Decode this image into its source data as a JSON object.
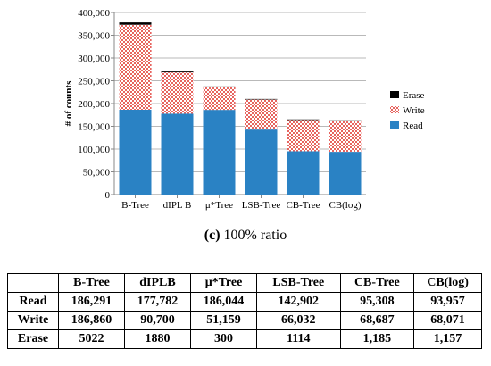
{
  "chart_data": {
    "type": "bar",
    "stacked": true,
    "categories": [
      "B-Tree",
      "dIPL B",
      "μ*Tree",
      "LSB-Tree",
      "CB-Tree",
      "CB(log)"
    ],
    "series": [
      {
        "name": "Read",
        "color": "#2a82c4",
        "values": [
          186291,
          177782,
          186044,
          142902,
          95308,
          93957
        ]
      },
      {
        "name": "Write",
        "color": "#e0322c",
        "pattern": "dots",
        "values": [
          186860,
          90700,
          51159,
          66032,
          68687,
          68071
        ]
      },
      {
        "name": "Erase",
        "color": "#000000",
        "values": [
          5022,
          1880,
          300,
          1114,
          1185,
          1157
        ]
      }
    ],
    "ylabel": "# of counts",
    "ylim": [
      0,
      400000
    ],
    "yticks": [
      "0",
      "50,000",
      "100,000",
      "150,000",
      "200,000",
      "250,000",
      "300,000",
      "350,000",
      "400,000"
    ],
    "legend_position": "right",
    "legend_order": [
      "Erase",
      "Write",
      "Read"
    ]
  },
  "caption": {
    "label": "(c)",
    "text": "100% ratio"
  },
  "table": {
    "headers": [
      "",
      "B-Tree",
      "dIPLB",
      "μ*Tree",
      "LSB-Tree",
      "CB-Tree",
      "CB(log)"
    ],
    "rows": [
      {
        "label": "Read",
        "cells": [
          "186,291",
          "177,782",
          "186,044",
          "142,902",
          "95,308",
          "93,957"
        ]
      },
      {
        "label": "Write",
        "cells": [
          "186,860",
          "90,700",
          "51,159",
          "66,032",
          "68,687",
          "68,071"
        ]
      },
      {
        "label": "Erase",
        "cells": [
          "5022",
          "1880",
          "300",
          "1114",
          "1,185",
          "1,157"
        ]
      }
    ]
  }
}
